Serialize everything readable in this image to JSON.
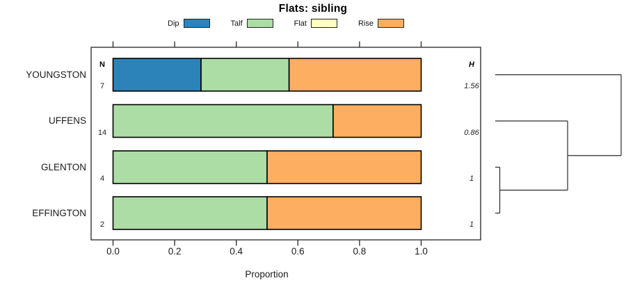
{
  "chart_data": {
    "type": "bar",
    "orientation": "horizontal-stacked",
    "title": "Flats: sibling",
    "xlabel": "Proportion",
    "xlim": [
      0,
      1
    ],
    "x_ticks": [
      "0.0",
      "0.2",
      "0.4",
      "0.6",
      "0.8",
      "1.0"
    ],
    "grid": false,
    "legend_position": "top",
    "legend": [
      {
        "label": "Dip",
        "color": "#2B83BA"
      },
      {
        "label": "Talf",
        "color": "#ABDDA4"
      },
      {
        "label": "Flat",
        "color": "#FFFFBF"
      },
      {
        "label": "Rise",
        "color": "#FDAE61"
      }
    ],
    "n_column_header": "N",
    "h_column_header": "H",
    "rows": [
      {
        "label": "YOUNGSTON",
        "n": "7",
        "h": "1.56",
        "segments": [
          {
            "category": "Dip",
            "value": 0.2857
          },
          {
            "category": "Talf",
            "value": 0.2857
          },
          {
            "category": "Rise",
            "value": 0.4286
          }
        ]
      },
      {
        "label": "UFFENS",
        "n": "14",
        "h": "0.86",
        "segments": [
          {
            "category": "Talf",
            "value": 0.7143
          },
          {
            "category": "Rise",
            "value": 0.2857
          }
        ]
      },
      {
        "label": "GLENTON",
        "n": "4",
        "h": "1",
        "segments": [
          {
            "category": "Talf",
            "value": 0.5
          },
          {
            "category": "Rise",
            "value": 0.5
          }
        ]
      },
      {
        "label": "EFFINGTON",
        "n": "2",
        "h": "1",
        "segments": [
          {
            "category": "Talf",
            "value": 0.5
          },
          {
            "category": "Rise",
            "value": 0.5
          }
        ]
      }
    ],
    "dendrogram": {
      "merges": [
        {
          "children": [
            "GLENTON",
            "EFFINGTON"
          ],
          "height": 0.036
        },
        {
          "children": [
            "UFFENS",
            "m0"
          ],
          "height": 0.575
        },
        {
          "children": [
            "YOUNGSTON",
            "m1"
          ],
          "height": 1.0
        }
      ]
    }
  }
}
